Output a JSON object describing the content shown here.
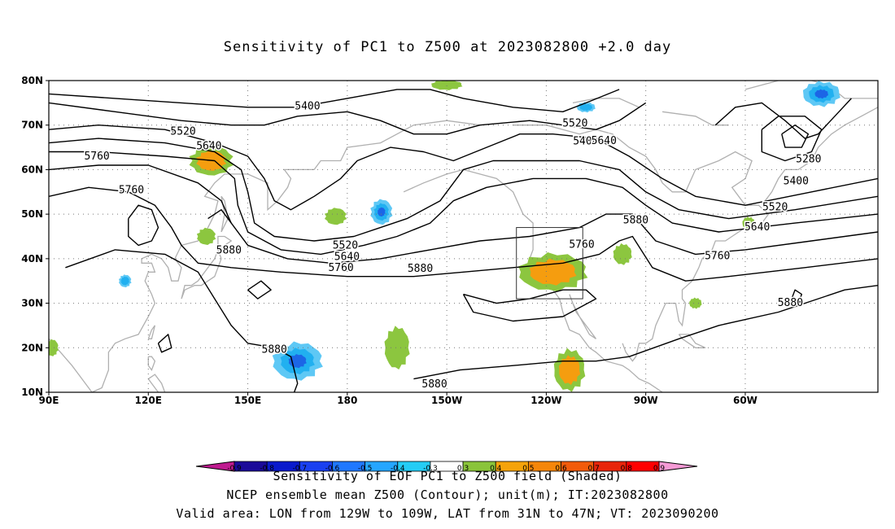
{
  "title": "Sensitivity of PC1 to Z500 at 2023082800 +2.0 day",
  "captions": {
    "line1": "Sensitivity of EOF PC1 to Z500 field (Shaded)",
    "line2": "NCEP ensemble mean Z500 (Contour); unit(m); IT:2023082800",
    "line3": "Valid area: LON from 129W to 109W, LAT from 31N to 47N; VT: 2023090200"
  },
  "axes": {
    "lat_labels": [
      "80N",
      "70N",
      "60N",
      "50N",
      "40N",
      "30N",
      "20N",
      "10N"
    ],
    "lon_labels": [
      "90E",
      "120E",
      "150E",
      "180",
      "150W",
      "120W",
      "90W",
      "60W"
    ],
    "lon_range": [
      90,
      340
    ],
    "lat_range": [
      10,
      80
    ],
    "grid": "dotted"
  },
  "contour_labels": [
    {
      "text": "5400",
      "lon": 168.0,
      "lat": 74.2
    },
    {
      "text": "5520",
      "lon": 130.5,
      "lat": 68.6
    },
    {
      "text": "5640",
      "lon": 138.3,
      "lat": 65.3
    },
    {
      "text": "5760",
      "lon": 104.5,
      "lat": 63.0
    },
    {
      "text": "5760",
      "lon": 114.9,
      "lat": 55.4
    },
    {
      "text": "5880",
      "lon": 144.3,
      "lat": 41.9
    },
    {
      "text": "5520",
      "lon": 179.4,
      "lat": 43.0
    },
    {
      "text": "5640",
      "lon": 179.9,
      "lat": 40.4
    },
    {
      "text": "5760",
      "lon": 178.1,
      "lat": 38.0
    },
    {
      "text": "5880",
      "lon": 202.0,
      "lat": 37.8
    },
    {
      "text": "5880",
      "lon": 158.0,
      "lat": 19.6
    },
    {
      "text": "5880",
      "lon": 206.3,
      "lat": 11.8
    },
    {
      "text": "5520",
      "lon": 248.7,
      "lat": 70.4
    },
    {
      "text": "5400",
      "lon": 251.9,
      "lat": 66.4
    },
    {
      "text": "5640",
      "lon": 257.4,
      "lat": 66.5
    },
    {
      "text": "5760",
      "lon": 250.7,
      "lat": 43.2
    },
    {
      "text": "5880",
      "lon": 267.0,
      "lat": 48.7
    },
    {
      "text": "5280",
      "lon": 319.1,
      "lat": 62.4
    },
    {
      "text": "5400",
      "lon": 315.3,
      "lat": 57.4
    },
    {
      "text": "5520",
      "lon": 309.0,
      "lat": 51.6
    },
    {
      "text": "5640",
      "lon": 303.6,
      "lat": 47.1
    },
    {
      "text": "5760",
      "lon": 291.6,
      "lat": 40.6
    },
    {
      "text": "5880",
      "lon": 313.6,
      "lat": 30.1
    }
  ],
  "sensitivity_patches": [
    {
      "lon": 139,
      "lat": 62,
      "rx": 7,
      "ry": 3.5,
      "level": "positive-strong"
    },
    {
      "lon": 176.5,
      "lat": 49.5,
      "rx": 3.5,
      "ry": 2,
      "level": "positive"
    },
    {
      "lon": 190.3,
      "lat": 50.5,
      "rx": 3.5,
      "ry": 3,
      "level": "negative"
    },
    {
      "lon": 137.5,
      "lat": 45,
      "rx": 3,
      "ry": 2,
      "level": "positive"
    },
    {
      "lon": 113,
      "lat": 35,
      "rx": 2,
      "ry": 1.5,
      "level": "negative-weak"
    },
    {
      "lon": 91,
      "lat": 20,
      "rx": 2,
      "ry": 2,
      "level": "positive"
    },
    {
      "lon": 165,
      "lat": 17,
      "rx": 8,
      "ry": 4.5,
      "level": "negative"
    },
    {
      "lon": 195,
      "lat": 20,
      "rx": 4,
      "ry": 5,
      "level": "positive"
    },
    {
      "lon": 242,
      "lat": 37,
      "rx": 11,
      "ry": 4.5,
      "level": "positive-strong"
    },
    {
      "lon": 263,
      "lat": 41,
      "rx": 3,
      "ry": 2.5,
      "level": "positive"
    },
    {
      "lon": 247,
      "lat": 15,
      "rx": 5,
      "ry": 5,
      "level": "positive-strong"
    },
    {
      "lon": 210,
      "lat": 79,
      "rx": 5,
      "ry": 1.2,
      "level": "positive"
    },
    {
      "lon": 323,
      "lat": 77,
      "rx": 6,
      "ry": 3,
      "level": "negative"
    },
    {
      "lon": 252,
      "lat": 74,
      "rx": 3,
      "ry": 1.2,
      "level": "negative-weak"
    },
    {
      "lon": 301,
      "lat": 48,
      "rx": 2,
      "ry": 1.5,
      "level": "positive"
    },
    {
      "lon": 285,
      "lat": 30,
      "rx": 2,
      "ry": 1.3,
      "level": "positive"
    }
  ],
  "valid_area_box": {
    "lon_min": 231,
    "lon_max": 251,
    "lat_min": 31,
    "lat_max": 47
  },
  "colorbar": {
    "ticks": [
      "-0.9",
      "-0.8",
      "-0.7",
      "-0.6",
      "-0.5",
      "-0.4",
      "-0.3",
      "0.3",
      "0.4",
      "0.5",
      "0.6",
      "0.7",
      "0.8",
      "0.9"
    ],
    "colors": [
      "#bf1a8f",
      "#1b0a99",
      "#0a1acc",
      "#1a40f0",
      "#1f78ff",
      "#25a6ff",
      "#24cdf5",
      "#ffffff",
      "#8ac43a",
      "#f5a30a",
      "#f5860a",
      "#f25b0a",
      "#e8250a",
      "#ff0000",
      "#f59ad5"
    ]
  },
  "colors": {
    "contour": "#000000",
    "coast": "#b0b0b0",
    "grid": "#777777",
    "positive": "#8cc63f",
    "positive_strong": "#f59d0f",
    "negative": "#21b0f0",
    "negative_strong": "#1c66e6",
    "negative_weak": "#5ec8f5"
  }
}
